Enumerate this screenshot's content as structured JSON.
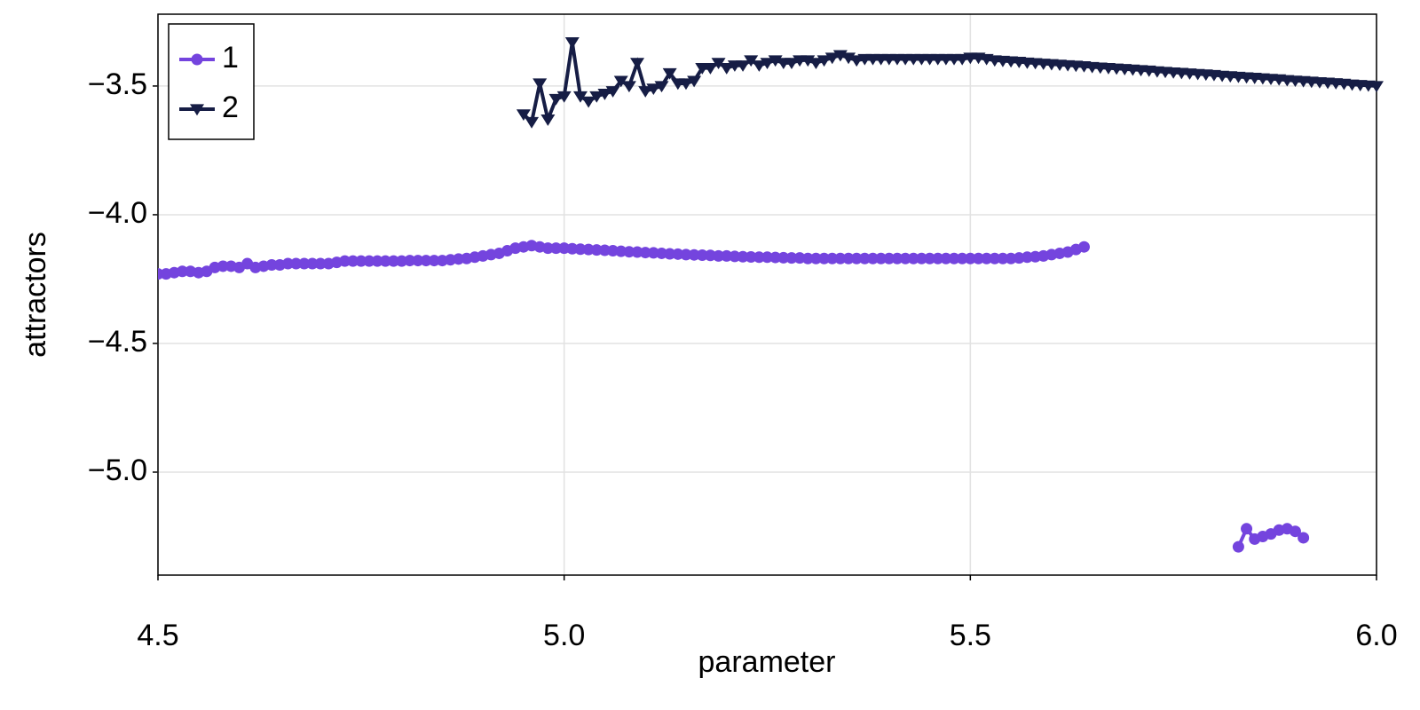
{
  "chart_data": {
    "type": "line",
    "x_label": "parameter",
    "y_label": "attractors",
    "x": [
      4.5,
      4.51,
      4.52,
      4.53,
      4.54,
      4.55,
      4.56,
      4.57,
      4.58,
      4.59,
      4.6,
      4.61,
      4.62,
      4.63,
      4.64,
      4.65,
      4.66,
      4.67,
      4.68,
      4.69,
      4.7,
      4.71,
      4.72,
      4.73,
      4.74,
      4.75,
      4.76,
      4.77,
      4.78,
      4.79,
      4.8,
      4.81,
      4.82,
      4.83,
      4.84,
      4.85,
      4.86,
      4.87,
      4.88,
      4.89,
      4.9,
      4.91,
      4.92,
      4.93,
      4.94,
      4.95,
      4.96,
      4.97,
      4.98,
      4.99,
      5,
      5.01,
      5.02,
      5.03,
      5.04,
      5.05,
      5.06,
      5.07,
      5.08,
      5.09,
      5.1,
      5.11,
      5.12,
      5.13,
      5.14,
      5.15,
      5.16,
      5.17,
      5.18,
      5.19,
      5.2,
      5.21,
      5.22,
      5.23,
      5.24,
      5.25,
      5.26,
      5.27,
      5.28,
      5.29,
      5.3,
      5.31,
      5.32,
      5.33,
      5.34,
      5.35,
      5.36,
      5.37,
      5.38,
      5.39,
      5.4,
      5.41,
      5.42,
      5.43,
      5.44,
      5.45,
      5.46,
      5.47,
      5.48,
      5.49,
      5.5,
      5.51,
      5.52,
      5.53,
      5.54,
      5.55,
      5.56,
      5.57,
      5.58,
      5.59,
      5.6,
      5.61,
      5.62,
      5.63,
      5.64,
      5.65,
      5.66,
      5.67,
      5.68,
      5.69,
      5.7,
      5.71,
      5.72,
      5.73,
      5.74,
      5.75,
      5.76,
      5.77,
      5.78,
      5.79,
      5.8,
      5.81,
      5.82,
      5.83,
      5.84,
      5.85,
      5.86,
      5.87,
      5.88,
      5.89,
      5.9,
      5.91,
      5.92,
      5.93,
      5.94,
      5.95,
      5.96,
      5.97,
      5.98,
      5.99,
      6
    ],
    "series": [
      {
        "name": "1",
        "color": "#7444de",
        "marker": "circle",
        "values": [
          -4.23,
          -4.23,
          -4.225,
          -4.22,
          -4.22,
          -4.225,
          -4.22,
          -4.205,
          -4.2,
          -4.2,
          -4.205,
          -4.19,
          -4.205,
          -4.2,
          -4.195,
          -4.195,
          -4.19,
          -4.19,
          -4.19,
          -4.19,
          -4.19,
          -4.19,
          -4.185,
          -4.18,
          -4.18,
          -4.18,
          -4.18,
          -4.18,
          -4.18,
          -4.18,
          -4.18,
          -4.178,
          -4.178,
          -4.178,
          -4.178,
          -4.178,
          -4.175,
          -4.172,
          -4.17,
          -4.165,
          -4.16,
          -4.155,
          -4.15,
          -4.14,
          -4.13,
          -4.125,
          -4.12,
          -4.125,
          -4.13,
          -4.13,
          -4.13,
          -4.132,
          -4.134,
          -4.135,
          -4.137,
          -4.138,
          -4.14,
          -4.142,
          -4.144,
          -4.145,
          -4.147,
          -4.148,
          -4.15,
          -4.152,
          -4.153,
          -4.155,
          -4.156,
          -4.157,
          -4.158,
          -4.16,
          -4.16,
          -4.162,
          -4.163,
          -4.164,
          -4.165,
          -4.165,
          -4.166,
          -4.167,
          -4.168,
          -4.168,
          -4.17,
          -4.17,
          -4.17,
          -4.17,
          -4.17,
          -4.17,
          -4.17,
          -4.17,
          -4.17,
          -4.17,
          -4.17,
          -4.17,
          -4.17,
          -4.17,
          -4.17,
          -4.17,
          -4.17,
          -4.17,
          -4.17,
          -4.17,
          -4.17,
          -4.17,
          -4.17,
          -4.17,
          -4.17,
          -4.17,
          -4.168,
          -4.165,
          -4.163,
          -4.16,
          -4.155,
          -4.15,
          -4.145,
          -4.135,
          -4.125,
          null,
          null,
          null,
          null,
          null,
          null,
          null,
          null,
          null,
          null,
          null,
          null,
          null,
          null,
          null,
          null,
          null,
          null,
          -5.29,
          -5.22,
          -5.26,
          -5.25,
          -5.24,
          -5.225,
          -5.22,
          -5.23,
          -5.255,
          null,
          null,
          null,
          null,
          null,
          null,
          null,
          null,
          null
        ]
      },
      {
        "name": "2",
        "color": "#161d45",
        "marker": "triangle-down",
        "values": [
          null,
          null,
          null,
          null,
          null,
          null,
          null,
          null,
          null,
          null,
          null,
          null,
          null,
          null,
          null,
          null,
          null,
          null,
          null,
          null,
          null,
          null,
          null,
          null,
          null,
          null,
          null,
          null,
          null,
          null,
          null,
          null,
          null,
          null,
          null,
          null,
          null,
          null,
          null,
          null,
          null,
          null,
          null,
          null,
          null,
          -3.61,
          -3.64,
          -3.49,
          -3.63,
          -3.55,
          -3.54,
          -3.33,
          -3.54,
          -3.56,
          -3.54,
          -3.53,
          -3.52,
          -3.48,
          -3.5,
          -3.41,
          -3.52,
          -3.51,
          -3.5,
          -3.45,
          -3.49,
          -3.49,
          -3.48,
          -3.43,
          -3.43,
          -3.41,
          -3.43,
          -3.42,
          -3.42,
          -3.4,
          -3.42,
          -3.41,
          -3.4,
          -3.41,
          -3.41,
          -3.4,
          -3.4,
          -3.41,
          -3.4,
          -3.39,
          -3.38,
          -3.39,
          -3.4,
          -3.395,
          -3.395,
          -3.395,
          -3.395,
          -3.395,
          -3.395,
          -3.395,
          -3.395,
          -3.395,
          -3.395,
          -3.395,
          -3.395,
          -3.395,
          -3.39,
          -3.39,
          -3.395,
          -3.4,
          -3.402,
          -3.404,
          -3.406,
          -3.409,
          -3.411,
          -3.413,
          -3.415,
          -3.417,
          -3.419,
          -3.421,
          -3.423,
          -3.426,
          -3.428,
          -3.43,
          -3.432,
          -3.434,
          -3.436,
          -3.438,
          -3.44,
          -3.443,
          -3.445,
          -3.447,
          -3.449,
          -3.451,
          -3.453,
          -3.455,
          -3.457,
          -3.46,
          -3.462,
          -3.464,
          -3.466,
          -3.468,
          -3.47,
          -3.472,
          -3.474,
          -3.477,
          -3.479,
          -3.481,
          -3.483,
          -3.485,
          -3.487,
          -3.489,
          -3.491,
          -3.494,
          -3.496,
          -3.498,
          -3.5
        ]
      }
    ],
    "xlim": [
      4.5,
      6.0
    ],
    "ylim": [
      -5.4,
      -3.221
    ],
    "xticks": [
      4.5,
      {
        "value": 5,
        "label": "5.0"
      },
      5.5,
      {
        "value": 6,
        "label": "6.0"
      }
    ],
    "yticks": [
      {
        "value": -3.5,
        "label": "−3.5"
      },
      {
        "value": -4,
        "label": "−4.0"
      },
      {
        "value": -4.5,
        "label": "−4.5"
      },
      {
        "value": -5,
        "label": "−5.0"
      }
    ],
    "grid": true,
    "legend": "top-left"
  }
}
